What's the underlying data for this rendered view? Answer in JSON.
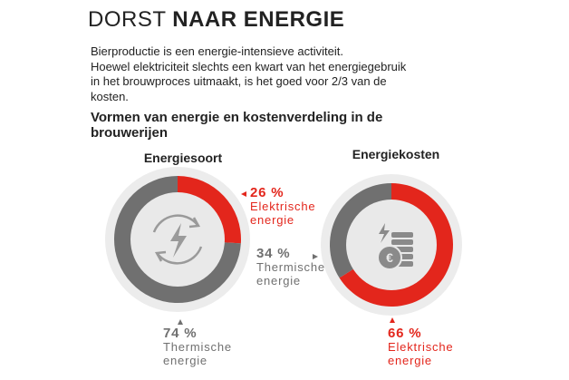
{
  "header": {
    "title_light": "DORST",
    "title_bold": "NAAR ENERGIE",
    "intro": [
      "Bierproductie is een energie-intensieve activiteit.",
      "Hoewel elektriciteit slechts een kwart van het energiegebruik",
      "in het brouwproces uitmaakt, is het goed voor 2/3 van de",
      "kosten."
    ],
    "subtitle": "Vormen van energie en kostenverdeling in de brouwerijen"
  },
  "chart_data": [
    {
      "type": "pie",
      "title": "Energiesoort",
      "categories": [
        "Elektrische energie",
        "Thermische energie"
      ],
      "values": [
        26,
        74
      ],
      "value_labels": [
        "26 %",
        "74 %"
      ],
      "colors": [
        "#e3261c",
        "#707070"
      ]
    },
    {
      "type": "pie",
      "title": "Energiekosten",
      "categories": [
        "Elektrische energie",
        "Thermische energie"
      ],
      "values": [
        66,
        34
      ],
      "value_labels": [
        "66 %",
        "34 %"
      ],
      "colors": [
        "#e3261c",
        "#707070"
      ]
    }
  ]
}
